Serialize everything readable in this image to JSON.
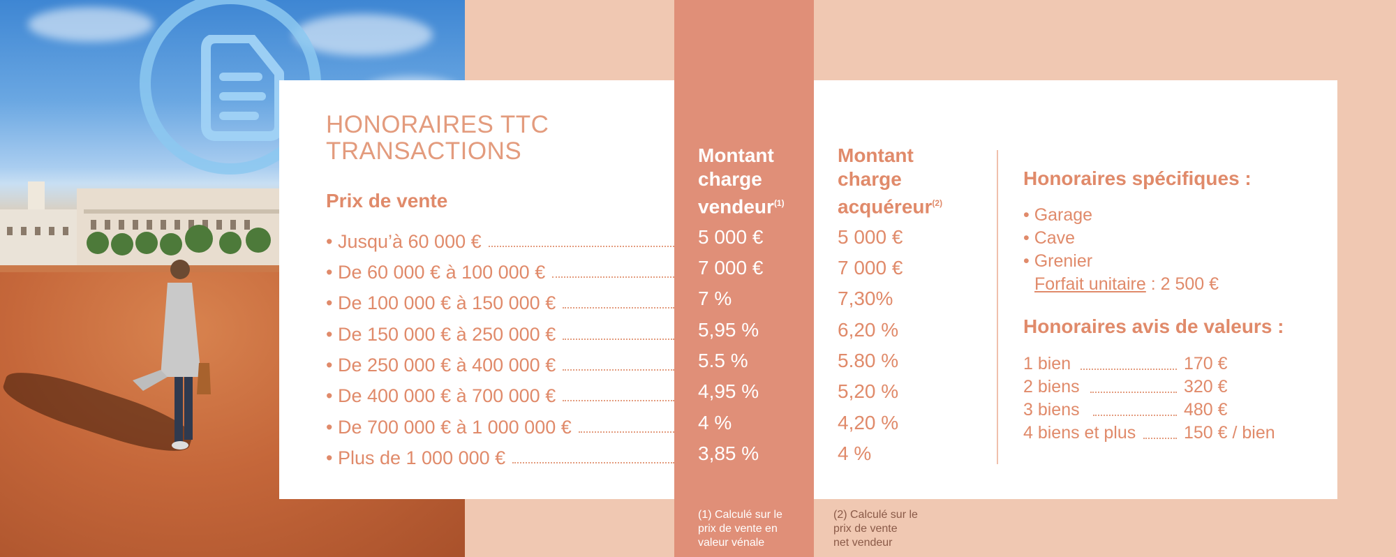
{
  "title": {
    "line1": "HONORAIRES TTC",
    "line2": "TRANSACTIONS"
  },
  "prix_heading": "Prix de vente",
  "col_vendeur": {
    "l1": "Montant",
    "l2": "charge",
    "l3": "vendeur",
    "sup": "(1)"
  },
  "col_acquereur": {
    "l1": "Montant",
    "l2": "charge",
    "l3": "acquéreur",
    "sup": "(2)"
  },
  "rows": [
    {
      "label": "• Jusqu’à 60 000 €",
      "vendeur": "5 000 €",
      "acquereur": "5 000 €"
    },
    {
      "label": "• De 60 000 € à 100 000 €",
      "vendeur": "7 000 €",
      "acquereur": "7 000 €"
    },
    {
      "label": "• De 100 000 € à 150 000 €",
      "vendeur": "7 %",
      "acquereur": "7,30%"
    },
    {
      "label": "• De 150 000 € à 250 000 €",
      "vendeur": "5,95 %",
      "acquereur": "6,20 %"
    },
    {
      "label": "• De 250 000 € à 400 000 €",
      "vendeur": "5.5 %",
      "acquereur": "5.80 %"
    },
    {
      "label": "• De 400 000 € à 700 000 €",
      "vendeur": "4,95 %",
      "acquereur": "5,20 %"
    },
    {
      "label": "• De 700 000 € à 1 000 000 €",
      "vendeur": "4 %",
      "acquereur": "4,20 %"
    },
    {
      "label": "• Plus de 1 000 000 €",
      "vendeur": "3,85 %",
      "acquereur": "4 %"
    }
  ],
  "specifiques": {
    "title": "Honoraires spécifiques :",
    "items": [
      "• Garage",
      "• Cave",
      "• Grenier"
    ],
    "forfait_label": "Forfait unitaire",
    "forfait_value": " : 2 500 €"
  },
  "avis": {
    "title": "Honoraires avis de valeurs :",
    "rows": [
      {
        "n": "1  bien",
        "price": "170  €"
      },
      {
        "n": "2 biens",
        "price": "320 €"
      },
      {
        "n": "3  biens",
        "price": "480 €"
      },
      {
        "n": "4 biens et plus",
        "price": "150  € / bien"
      }
    ]
  },
  "footnotes": {
    "f1": [
      "(1) Calculé sur le",
      "prix de vente en",
      "valeur vénale"
    ],
    "f2": [
      "(2) Calculé sur le",
      "prix de vente",
      "net vendeur"
    ]
  },
  "colors": {
    "salmon": "#e08f78",
    "peach": "#f0c8b2",
    "text": "#e08a6a"
  }
}
